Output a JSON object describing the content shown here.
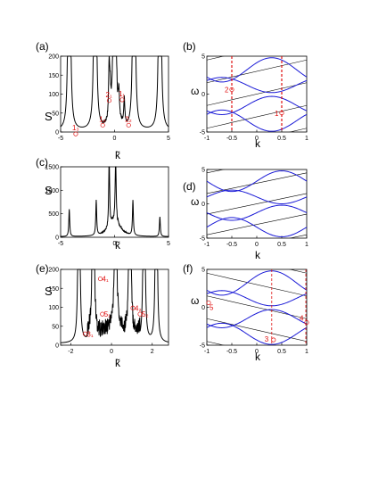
{
  "colors": {
    "axis": "#000000",
    "curve": "#000000",
    "band": "#1a1ad6",
    "marker": "#e01010"
  },
  "panels": [
    {
      "id": "a",
      "label": "(a)",
      "kind": "spectrum",
      "ylabel": "S",
      "xlabel": "k̃",
      "xlim": [
        -5,
        5
      ],
      "ylim": [
        0,
        200
      ],
      "xticks": [
        "-5",
        "0",
        "5"
      ],
      "yticks": [
        "0",
        "50",
        "100",
        "150",
        "200"
      ],
      "markers": [
        "1₃",
        "1₂",
        "2₁",
        "1₁",
        "2₂"
      ]
    },
    {
      "id": "b",
      "label": "(b)",
      "kind": "bands",
      "ylabel": "ω",
      "xlabel": "k",
      "xlim": [
        -1,
        1
      ],
      "ylim": [
        -5,
        5
      ],
      "xticks": [
        "-1",
        "-0.5",
        "0",
        "0.5",
        "1"
      ],
      "yticks": [
        "-5",
        "0",
        "5"
      ],
      "markers": [
        "2",
        "1"
      ]
    },
    {
      "id": "c",
      "label": "(c)",
      "kind": "spectrum",
      "ylabel": "S",
      "xlabel": "k̃",
      "xlim": [
        -5,
        5
      ],
      "ylim": [
        0,
        1500
      ],
      "xticks": [
        "-5",
        "0",
        "5"
      ],
      "yticks": [
        "0",
        "500",
        "1000",
        "1500"
      ],
      "markers": []
    },
    {
      "id": "d",
      "label": "(d)",
      "kind": "bands",
      "ylabel": "ω",
      "xlabel": "k",
      "xlim": [
        -1,
        1
      ],
      "ylim": [
        -5,
        5
      ],
      "xticks": [
        "-1",
        "-0.5",
        "0",
        "0.5",
        "1"
      ],
      "yticks": [
        "-5",
        "0",
        "5"
      ],
      "markers": []
    },
    {
      "id": "e",
      "label": "(e)",
      "kind": "spectrum",
      "ylabel": "S",
      "xlabel": "k̃",
      "xlim": [
        -2.5,
        2.8
      ],
      "ylim": [
        0,
        200
      ],
      "xticks": [
        "-2",
        "0",
        "2"
      ],
      "yticks": [
        "0",
        "50",
        "100",
        "150",
        "200"
      ],
      "markers": [
        "4₁",
        "4₂",
        "5₁",
        "5₂",
        "3₁"
      ]
    },
    {
      "id": "f",
      "label": "(f)",
      "kind": "bands",
      "ylabel": "ω",
      "xlabel": "k",
      "xlim": [
        -1,
        1
      ],
      "ylim": [
        -5,
        5
      ],
      "xticks": [
        "-1",
        "-0.5",
        "0",
        "0.5",
        "1"
      ],
      "yticks": [
        "-5",
        "0",
        "5"
      ],
      "markers": [
        "5",
        "3",
        "4"
      ]
    }
  ],
  "chart_data": [
    {
      "type": "line",
      "panel": "a",
      "ylabel": "S",
      "xlabel": "k̃",
      "xlim": [
        -5,
        5
      ],
      "ylim": [
        0,
        200
      ],
      "peaks_x": [
        -4.2,
        -1.8,
        0.0,
        1.8,
        4.2
      ],
      "main_peaks_clipped_above": 200,
      "inner_peaks": [
        {
          "x": -0.5,
          "y": 150
        },
        {
          "x": 0.4,
          "y": 70
        },
        {
          "x": -0.4,
          "y": 60
        },
        {
          "x": 0.9,
          "y": 70
        }
      ]
    },
    {
      "type": "line",
      "panel": "b",
      "ylabel": "ω",
      "xlabel": "k",
      "xlim": [
        -1,
        1
      ],
      "ylim": [
        -5,
        5
      ],
      "vertical_dashed_lines_x": [
        -0.5,
        0.5
      ]
    },
    {
      "type": "line",
      "panel": "c",
      "ylabel": "S",
      "xlabel": "k̃",
      "xlim": [
        -5,
        5
      ],
      "ylim": [
        0,
        1500
      ],
      "peaks": [
        {
          "x": -4.2,
          "y": 580
        },
        {
          "x": -1.7,
          "y": 750
        },
        {
          "x": -0.5,
          "y": 1500
        },
        {
          "x": 0.1,
          "y": 1500
        },
        {
          "x": 1.7,
          "y": 750
        },
        {
          "x": 4.2,
          "y": 420
        }
      ]
    },
    {
      "type": "line",
      "panel": "d",
      "ylabel": "ω",
      "xlabel": "k",
      "xlim": [
        -1,
        1
      ],
      "ylim": [
        -5,
        5
      ]
    },
    {
      "type": "line",
      "panel": "e",
      "ylabel": "S",
      "xlabel": "k̃",
      "xlim": [
        -2.5,
        2.8
      ],
      "ylim": [
        0,
        200
      ],
      "peaks_x": [
        -1.6,
        -0.9,
        0.2,
        0.9,
        1.6,
        2.2
      ]
    },
    {
      "type": "line",
      "panel": "f",
      "ylabel": "ω",
      "xlabel": "k",
      "xlim": [
        -1,
        1
      ],
      "ylim": [
        -5,
        5
      ],
      "vertical_dashed_lines_x": [
        0.3,
        1.0
      ]
    }
  ]
}
